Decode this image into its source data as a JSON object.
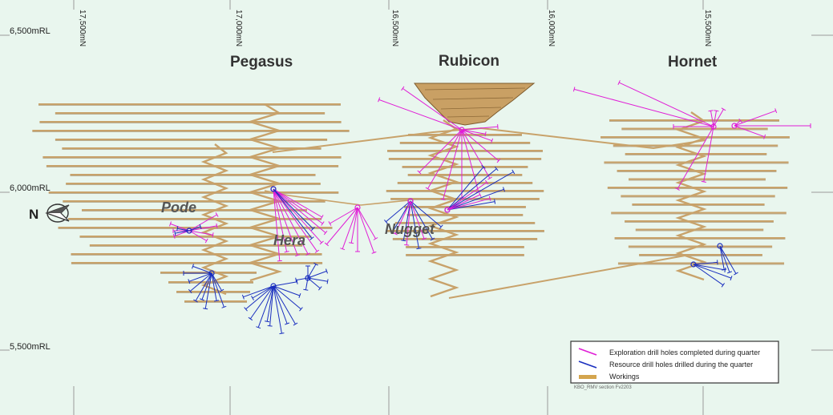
{
  "colors": {
    "background": "#e9f6ee",
    "workings": "#c8a26a",
    "workings_dark": "#8d6b3c",
    "exploration": "#e01ed6",
    "resource": "#1a2fbf",
    "grid": "#9a9a9a"
  },
  "rl_labels": [
    "6,500mRL",
    "6,000mRL",
    "5,500mRL"
  ],
  "mn_labels": [
    "17,500mN",
    "17,000mN",
    "16,500mN",
    "16,000mN",
    "15,500mN"
  ],
  "deposits": [
    "Pegasus",
    "Rubicon",
    "Hornet"
  ],
  "lodes": [
    "Pode",
    "Hera",
    "Nugget"
  ],
  "north_label": "N",
  "legend": {
    "items": [
      {
        "label": "Exploration drill holes completed during quarter",
        "symbol": "line",
        "color": "#e01ed6"
      },
      {
        "label": "Resource drill holes drilled during the quarter",
        "symbol": "line",
        "color": "#1a2fbf"
      },
      {
        "label": "Workings",
        "symbol": "bar",
        "color": "#d4a54e"
      }
    ],
    "code": "KBO_RMV section Fv2203"
  }
}
